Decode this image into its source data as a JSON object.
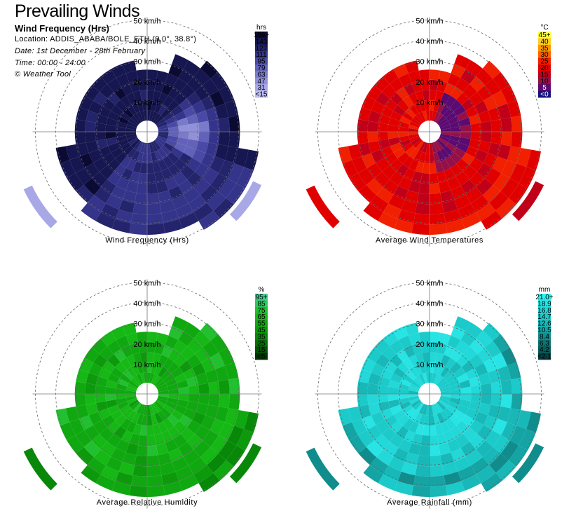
{
  "header": {
    "title": "Prevailing Winds",
    "subtitle": "Wind Frequency (Hrs)",
    "location": "Location: ADDIS_ABABA/BOLE_ETH (9.0°, 38.8°)",
    "date": "Date: 1st December - 28th February",
    "time": "Time: 00:00 - 24:00",
    "credit": "© Weather Tool"
  },
  "chart_data": [
    {
      "type": "heatmap",
      "subtype": "polar-wind-rose",
      "title": "Wind Frequency (Hrs)",
      "radial_axis": {
        "unit": "km/h",
        "ticks": [
          "10 km/h",
          "20 km/h",
          "30 km/h",
          "40 km/h",
          "50 km/h"
        ]
      },
      "color_scale": {
        "unit": "hrs",
        "labels": [
          "159+",
          "143",
          "127",
          "111",
          "95",
          "79",
          "63",
          "47",
          "31",
          "<15"
        ],
        "colors": [
          "#0a0a33",
          "#161650",
          "#24246c",
          "#34348a",
          "#4a4aa6",
          "#6262ba",
          "#7a7acc",
          "#9191da",
          "#a8a8e6",
          "#bcbcf2"
        ]
      },
      "pattern": "freq"
    },
    {
      "type": "heatmap",
      "subtype": "polar-wind-rose",
      "title": "Average Wind Temperatures",
      "radial_axis": {
        "unit": "km/h",
        "ticks": [
          "10 km/h",
          "20 km/h",
          "30 km/h",
          "40 km/h",
          "50 km/h"
        ]
      },
      "color_scale": {
        "unit": "°C",
        "labels": [
          "45+",
          "40",
          "35",
          "30",
          "25",
          "20",
          "15",
          "10",
          "5",
          "<0"
        ],
        "colors": [
          "#ffff40",
          "#ffd020",
          "#ff9800",
          "#ff6000",
          "#f02000",
          "#e00000",
          "#c00018",
          "#961048",
          "#5a0a70",
          "#141080"
        ]
      },
      "pattern": "temp"
    },
    {
      "type": "heatmap",
      "subtype": "polar-wind-rose",
      "title": "Average Relative Humidity",
      "radial_axis": {
        "unit": "km/h",
        "ticks": [
          "10 km/h",
          "20 km/h",
          "30 km/h",
          "40 km/h",
          "50 km/h"
        ]
      },
      "color_scale": {
        "unit": "%",
        "labels": [
          "95+",
          "85",
          "75",
          "65",
          "55",
          "45",
          "35",
          "25",
          "15",
          "<5"
        ],
        "colors": [
          "#3ccc90",
          "#30c860",
          "#22c030",
          "#16b816",
          "#10a810",
          "#0c9a0c",
          "#088808",
          "#067006",
          "#045204",
          "#023402"
        ]
      },
      "pattern": "hum"
    },
    {
      "type": "heatmap",
      "subtype": "polar-wind-rose",
      "title": "Average Rainfall (mm)",
      "radial_axis": {
        "unit": "km/h",
        "ticks": [
          "10 km/h",
          "20 km/h",
          "30 km/h",
          "40 km/h",
          "50 km/h"
        ]
      },
      "color_scale": {
        "unit": "mm",
        "labels": [
          "21.0+",
          "18.9",
          "16.8",
          "14.7",
          "12.6",
          "10.5",
          "8.4",
          "6.3",
          "4.2",
          "<2.1"
        ],
        "colors": [
          "#30f0f0",
          "#28e4e4",
          "#22d8d8",
          "#1ccaca",
          "#18b8b8",
          "#14a4a4",
          "#108c8c",
          "#0c7474",
          "#085c5c",
          "#043e3e"
        ]
      },
      "pattern": "rain"
    }
  ]
}
